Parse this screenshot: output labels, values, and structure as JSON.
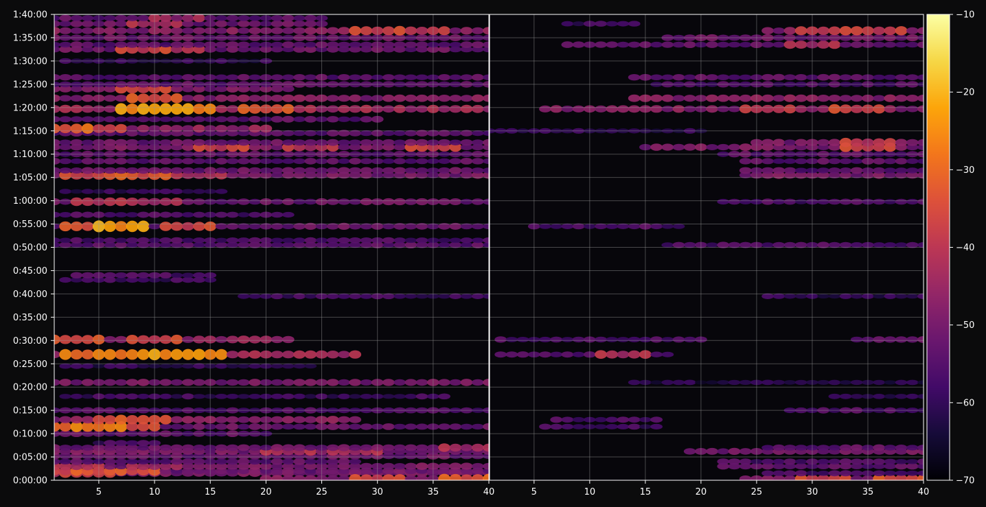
{
  "figure": {
    "background_color": "#0b0b0c",
    "foreground_color": "#ffffff",
    "grid_color": "#9a9a9a"
  },
  "chart_data": {
    "type": "heatmap",
    "title": "",
    "colormap": "inferno",
    "grid": true,
    "y_axis": {
      "label": "",
      "range": [
        "0:00:00",
        "1:40:00"
      ],
      "ticks": [
        "0:00:00",
        "0:05:00",
        "0:10:00",
        "0:15:00",
        "0:20:00",
        "0:25:00",
        "0:30:00",
        "0:35:00",
        "0:40:00",
        "0:45:00",
        "0:50:00",
        "0:55:00",
        "1:00:00",
        "1:05:00",
        "1:10:00",
        "1:15:00",
        "1:20:00",
        "1:25:00",
        "1:30:00",
        "1:35:00",
        "1:40:00"
      ]
    },
    "panels": [
      {
        "name": "left",
        "x_range": [
          1,
          40
        ],
        "x_ticks": [
          "5",
          "10",
          "15",
          "20",
          "25",
          "30",
          "35",
          "40"
        ],
        "rows": [
          {
            "t": 1.5,
            "x0": 1,
            "x1": 40,
            "level": -50,
            "peak": [
              [
                2,
                -46
              ],
              [
                4,
                -42
              ]
            ]
          },
          {
            "t": 2,
            "x0": 1,
            "x1": 40,
            "level": -52,
            "peak": [
              [
                2,
                -40
              ],
              [
                5,
                -36
              ],
              [
                8,
                -38
              ]
            ]
          },
          {
            "t": 3,
            "x0": 1,
            "x1": 40,
            "level": -50,
            "peak": [
              [
                3,
                -44
              ],
              [
                10,
                -48
              ]
            ]
          },
          {
            "t": 4,
            "x0": 1,
            "x1": 28,
            "level": -54
          },
          {
            "t": 5.2,
            "x0": 1,
            "x1": 40,
            "level": -52
          },
          {
            "t": 6.2,
            "x0": 1,
            "x1": 40,
            "level": -50,
            "peak": [
              [
                22,
                -46
              ],
              [
                28,
                -46
              ]
            ]
          },
          {
            "t": 7,
            "x0": 1,
            "x1": 40,
            "level": -52,
            "peak": [
              [
                38,
                -46
              ]
            ]
          },
          {
            "t": 8,
            "x0": 5,
            "x1": 10,
            "level": -58
          },
          {
            "t": 10,
            "x0": 1,
            "x1": 20,
            "level": -54
          },
          {
            "t": 11.5,
            "x0": 1,
            "x1": 40,
            "level": -52,
            "peak": [
              [
                3,
                -36
              ],
              [
                5,
                -30
              ],
              [
                8,
                -38
              ]
            ]
          },
          {
            "t": 13,
            "x0": 1,
            "x1": 28,
            "level": -48,
            "peak": [
              [
                7,
                -40
              ],
              [
                9,
                -38
              ]
            ]
          },
          {
            "t": 15,
            "x0": 1,
            "x1": 40,
            "level": -56
          },
          {
            "t": 18,
            "x0": 2,
            "x1": 36,
            "level": -58
          },
          {
            "t": 21,
            "x0": 1,
            "x1": 40,
            "level": -50
          },
          {
            "t": 24.5,
            "x0": 2,
            "x1": 24,
            "level": -60
          },
          {
            "t": 27,
            "x0": 1,
            "x1": 28,
            "level": -44,
            "peak": [
              [
                4,
                -32
              ],
              [
                7,
                -30
              ],
              [
                12,
                -28
              ],
              [
                14,
                -30
              ]
            ]
          },
          {
            "t": 30.2,
            "x0": 1,
            "x1": 22,
            "level": -46,
            "peak": [
              [
                3,
                -38
              ],
              [
                10,
                -40
              ]
            ]
          },
          {
            "t": 39.5,
            "x0": 18,
            "x1": 40,
            "level": -58
          },
          {
            "t": 43,
            "x0": 2,
            "x1": 15,
            "level": -58
          },
          {
            "t": 44,
            "x0": 3,
            "x1": 15,
            "level": -56
          },
          {
            "t": 50.5,
            "x0": 1,
            "x1": 40,
            "level": -54
          },
          {
            "t": 51.5,
            "x0": 1,
            "x1": 40,
            "level": -56
          },
          {
            "t": 54.5,
            "x0": 1,
            "x1": 40,
            "level": -52,
            "peak": [
              [
                4,
                -36
              ],
              [
                7,
                -26
              ],
              [
                13,
                -40
              ]
            ]
          },
          {
            "t": 57,
            "x0": 1,
            "x1": 22,
            "level": -56
          },
          {
            "t": 59.8,
            "x0": 1,
            "x1": 40,
            "level": -52,
            "peak": [
              [
                5,
                -44
              ],
              [
                10,
                -46
              ]
            ]
          },
          {
            "t": 62,
            "x0": 2,
            "x1": 16,
            "level": -60
          },
          {
            "t": 65.5,
            "x0": 1,
            "x1": 40,
            "level": -50,
            "peak": [
              [
                4,
                -40
              ],
              [
                9,
                -36
              ],
              [
                14,
                -46
              ]
            ]
          },
          {
            "t": 66.5,
            "x0": 1,
            "x1": 40,
            "level": -52
          },
          {
            "t": 68.5,
            "x0": 1,
            "x1": 40,
            "level": -54
          },
          {
            "t": 70,
            "x0": 1,
            "x1": 40,
            "level": -54
          },
          {
            "t": 71.5,
            "x0": 1,
            "x1": 40,
            "level": -50,
            "peak": [
              [
                16,
                -40
              ],
              [
                24,
                -44
              ],
              [
                35,
                -40
              ]
            ]
          },
          {
            "t": 72.5,
            "x0": 1,
            "x1": 40,
            "level": -52
          },
          {
            "t": 74.5,
            "x0": 1,
            "x1": 40,
            "level": -54
          },
          {
            "t": 75.5,
            "x0": 1,
            "x1": 20,
            "level": -46,
            "peak": [
              [
                2,
                -34
              ],
              [
                5,
                -40
              ]
            ]
          },
          {
            "t": 77.5,
            "x0": 1,
            "x1": 30,
            "level": -54
          },
          {
            "t": 79.7,
            "x0": 1,
            "x1": 40,
            "level": -44,
            "peak": [
              [
                9,
                -28
              ],
              [
                11,
                -26
              ],
              [
                13,
                -30
              ],
              [
                20,
                -36
              ]
            ]
          },
          {
            "t": 82,
            "x0": 1,
            "x1": 40,
            "level": -48,
            "peak": [
              [
                10,
                -38
              ]
            ]
          },
          {
            "t": 84,
            "x0": 1,
            "x1": 22,
            "level": -50,
            "peak": [
              [
                9,
                -40
              ]
            ]
          },
          {
            "t": 85,
            "x0": 1,
            "x1": 40,
            "level": -54
          },
          {
            "t": 86.5,
            "x0": 1,
            "x1": 40,
            "level": -54
          },
          {
            "t": 90,
            "x0": 2,
            "x1": 20,
            "level": -60
          },
          {
            "t": 92.5,
            "x0": 1,
            "x1": 40,
            "level": -52,
            "peak": [
              [
                9,
                -40
              ],
              [
                12,
                -44
              ]
            ]
          },
          {
            "t": 93.5,
            "x0": 1,
            "x1": 40,
            "level": -54
          },
          {
            "t": 95,
            "x0": 1,
            "x1": 40,
            "level": -52
          },
          {
            "t": 96.5,
            "x0": 1,
            "x1": 40,
            "level": -48,
            "peak": [
              [
                30,
                -40
              ],
              [
                34,
                -42
              ]
            ]
          },
          {
            "t": 98,
            "x0": 1,
            "x1": 25,
            "level": -52,
            "peak": [
              [
                10,
                -46
              ]
            ]
          },
          {
            "t": 99.2,
            "x0": 1,
            "x1": 25,
            "level": -54,
            "peak": [
              [
                12,
                -48
              ]
            ]
          },
          {
            "t": 0.3,
            "x0": 20,
            "x1": 40,
            "level": -48,
            "peak": [
              [
                30,
                -38
              ],
              [
                38,
                -36
              ]
            ]
          }
        ]
      },
      {
        "name": "right",
        "x_range": [
          1,
          40
        ],
        "x_ticks": [
          "5",
          "10",
          "15",
          "20",
          "25",
          "30",
          "35",
          "40"
        ],
        "rows": [
          {
            "t": 0.3,
            "x0": 24,
            "x1": 40,
            "level": -50,
            "peak": [
              [
                31,
                -40
              ],
              [
                38,
                -38
              ]
            ]
          },
          {
            "t": 1.5,
            "x0": 26,
            "x1": 40,
            "level": -56
          },
          {
            "t": 3,
            "x0": 22,
            "x1": 40,
            "level": -54
          },
          {
            "t": 4,
            "x0": 22,
            "x1": 40,
            "level": -56
          },
          {
            "t": 6.2,
            "x0": 19,
            "x1": 40,
            "level": -50
          },
          {
            "t": 7,
            "x0": 26,
            "x1": 40,
            "level": -54
          },
          {
            "t": 11.5,
            "x0": 6,
            "x1": 16,
            "level": -58
          },
          {
            "t": 13,
            "x0": 7,
            "x1": 16,
            "level": -56
          },
          {
            "t": 15,
            "x0": 28,
            "x1": 40,
            "level": -56
          },
          {
            "t": 18,
            "x0": 32,
            "x1": 40,
            "level": -60
          },
          {
            "t": 21,
            "x0": 14,
            "x1": 40,
            "level": -62
          },
          {
            "t": 27,
            "x0": 2,
            "x1": 17,
            "level": -54,
            "peak": [
              [
                13,
                -44
              ]
            ]
          },
          {
            "t": 30.2,
            "x0": 2,
            "x1": 20,
            "level": -56
          },
          {
            "t": 30.2,
            "x0": 34,
            "x1": 40,
            "level": -52
          },
          {
            "t": 39.5,
            "x0": 26,
            "x1": 40,
            "level": -60
          },
          {
            "t": 50.5,
            "x0": 17,
            "x1": 40,
            "level": -56
          },
          {
            "t": 54.5,
            "x0": 5,
            "x1": 18,
            "level": -56
          },
          {
            "t": 59.8,
            "x0": 22,
            "x1": 40,
            "level": -56
          },
          {
            "t": 65.5,
            "x0": 24,
            "x1": 40,
            "level": -50
          },
          {
            "t": 66.5,
            "x0": 24,
            "x1": 40,
            "level": -54
          },
          {
            "t": 68.5,
            "x0": 24,
            "x1": 40,
            "level": -54
          },
          {
            "t": 70,
            "x0": 22,
            "x1": 40,
            "level": -54
          },
          {
            "t": 71.5,
            "x0": 15,
            "x1": 40,
            "level": -50,
            "peak": [
              [
                35,
                -40
              ]
            ]
          },
          {
            "t": 72.5,
            "x0": 25,
            "x1": 40,
            "level": -50,
            "peak": [
              [
                35,
                -42
              ]
            ]
          },
          {
            "t": 75,
            "x0": 1,
            "x1": 20,
            "level": -60
          },
          {
            "t": 79.7,
            "x0": 6,
            "x1": 40,
            "level": -48,
            "peak": [
              [
                26,
                -42
              ],
              [
                34,
                -40
              ]
            ]
          },
          {
            "t": 82,
            "x0": 14,
            "x1": 40,
            "level": -48
          },
          {
            "t": 85,
            "x0": 16,
            "x1": 40,
            "level": -56
          },
          {
            "t": 86.5,
            "x0": 14,
            "x1": 40,
            "level": -54
          },
          {
            "t": 93.5,
            "x0": 8,
            "x1": 40,
            "level": -54,
            "peak": [
              [
                30,
                -46
              ]
            ]
          },
          {
            "t": 95,
            "x0": 17,
            "x1": 40,
            "level": -52
          },
          {
            "t": 96.5,
            "x0": 26,
            "x1": 40,
            "level": -48,
            "peak": [
              [
                31,
                -42
              ],
              [
                36,
                -42
              ]
            ]
          },
          {
            "t": 98,
            "x0": 8,
            "x1": 14,
            "level": -58
          }
        ]
      }
    ],
    "colorbar": {
      "range": [
        -70,
        -10
      ],
      "ticks": [
        "−10",
        "−20",
        "−30",
        "−40",
        "−50",
        "−60",
        "−70"
      ]
    }
  }
}
